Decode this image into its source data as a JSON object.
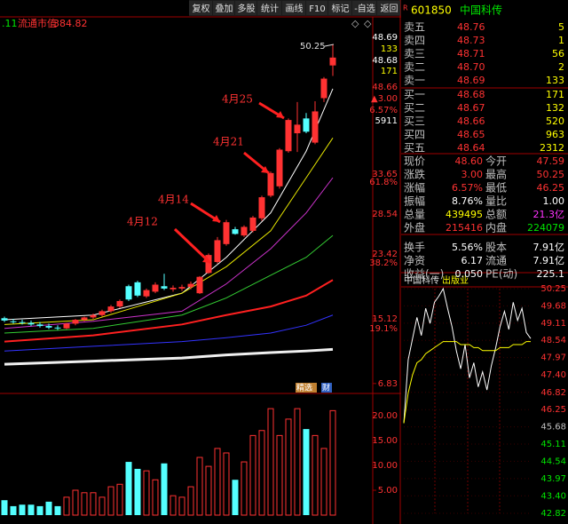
{
  "toolbar": [
    "复权",
    "叠加",
    "多股",
    "统计",
    "画线",
    "F10",
    "标记",
    "-自选",
    "返回"
  ],
  "indicator": {
    "period": ".11",
    "label": "流通市值",
    "value": "384.82"
  },
  "chart_data": [
    {
      "type": "candlestick",
      "candles": [
        [
          15.2,
          15.4,
          14.7,
          14.9
        ],
        [
          14.8,
          15.1,
          14.5,
          14.7
        ],
        [
          14.7,
          15.0,
          14.4,
          14.6
        ],
        [
          14.6,
          14.9,
          14.2,
          14.4
        ],
        [
          14.4,
          14.7,
          14.0,
          14.2
        ],
        [
          14.2,
          14.5,
          13.8,
          14.0
        ],
        [
          14.0,
          14.3,
          13.7,
          13.9
        ],
        [
          13.9,
          14.6,
          13.8,
          14.5
        ],
        [
          14.5,
          15.1,
          14.3,
          15.0
        ],
        [
          15.0,
          15.4,
          14.8,
          15.3
        ],
        [
          15.3,
          15.8,
          15.1,
          15.6
        ],
        [
          15.6,
          16.3,
          15.4,
          16.1
        ],
        [
          16.1,
          16.9,
          15.9,
          16.7
        ],
        [
          16.7,
          17.6,
          16.5,
          17.4
        ],
        [
          19.3,
          19.5,
          17.4,
          17.6
        ],
        [
          19.8,
          20.0,
          17.9,
          18.1
        ],
        [
          18.0,
          19.0,
          17.8,
          18.8
        ],
        [
          18.6,
          19.8,
          18.4,
          19.5
        ],
        [
          19.3,
          20.9,
          18.8,
          19.0
        ],
        [
          18.9,
          19.4,
          18.6,
          19.1
        ],
        [
          19.0,
          19.5,
          18.7,
          19.2
        ],
        [
          19.2,
          19.9,
          18.9,
          19.6
        ],
        [
          18.4,
          20.6,
          18.3,
          20.5
        ],
        [
          21.0,
          23.5,
          20.9,
          23.3
        ],
        [
          22.4,
          25.6,
          22.2,
          25.2
        ],
        [
          24.7,
          27.8,
          24.5,
          27.5
        ],
        [
          26.6,
          26.9,
          25.9,
          26.0
        ],
        [
          25.8,
          27.1,
          25.6,
          26.9
        ],
        [
          26.4,
          28.3,
          26.2,
          28.1
        ],
        [
          28.0,
          30.9,
          27.7,
          30.7
        ],
        [
          30.9,
          34.0,
          30.7,
          33.8
        ],
        [
          32.1,
          37.0,
          31.8,
          36.8
        ],
        [
          36.6,
          40.8,
          36.4,
          40.6
        ],
        [
          38.9,
          42.9,
          36.5,
          40.0
        ],
        [
          40.8,
          41.5,
          38.9,
          39.1
        ],
        [
          37.7,
          43.0,
          37.5,
          41.7
        ],
        [
          43.4,
          46.1,
          42.9,
          45.9
        ],
        [
          47.59,
          50.25,
          46.25,
          48.6
        ]
      ],
      "up_color": "#ff3232",
      "down_color": "#54ffff",
      "ylim": [
        5.9,
        53.7
      ],
      "yticks": [
        6.83,
        15.12,
        23.42,
        28.54,
        33.65
      ],
      "ma_x": [
        0,
        10,
        20,
        25,
        30,
        34,
        37
      ],
      "ma_lines": [
        {
          "color": "#ffffff",
          "values": [
            15.0,
            15.6,
            18.4,
            23.0,
            28.7,
            36.6,
            44.6
          ]
        },
        {
          "color": "#e6e600",
          "values": [
            14.4,
            15.0,
            18.4,
            21.8,
            26.4,
            33.2,
            38.3
          ]
        },
        {
          "color": "#cc33cc",
          "values": [
            13.9,
            14.8,
            16.1,
            19.6,
            24.1,
            28.7,
            33.2
          ]
        },
        {
          "color": "#33cc33",
          "values": [
            13.3,
            13.9,
            15.6,
            17.8,
            20.7,
            23.0,
            25.8
          ]
        },
        {
          "color": "#ff2020",
          "values": [
            12.2,
            13.0,
            14.4,
            15.6,
            16.7,
            18.1,
            20.1
          ]
        },
        {
          "color": "#3333ff",
          "values": [
            11.0,
            11.6,
            12.2,
            12.7,
            13.3,
            14.3,
            15.6
          ]
        },
        {
          "color": "#f0f0f0",
          "values": [
            9.3,
            9.7,
            10.1,
            10.5,
            10.8,
            11.0,
            11.2
          ]
        }
      ],
      "annotations": [
        "4月25",
        "4月21",
        "4月14",
        "4月12"
      ],
      "high_label": "50.25",
      "level_labels": [
        "61.8%",
        "38.2%",
        "19.1%"
      ],
      "side_info": [
        {
          "text": "48.69",
          "color": "#ffffff"
        },
        {
          "text": "133",
          "color": "#ffff00"
        },
        {
          "text": "48.68",
          "color": "#ffffff"
        },
        {
          "text": "171",
          "color": "#ffff00"
        },
        {
          "text": "48.66",
          "color": "#ff3232"
        },
        {
          "text": "▲3.00",
          "color": "#ff3232"
        },
        {
          "text": "6.57%",
          "color": "#ff3232"
        },
        {
          "text": "5911",
          "color": "#ffffff"
        }
      ],
      "tags": [
        "精选",
        "财"
      ]
    },
    {
      "type": "volume",
      "values": [
        3.0,
        1.8,
        2.1,
        2.1,
        1.8,
        2.7,
        1.8,
        3.6,
        5.0,
        4.5,
        4.5,
        3.6,
        5.7,
        6.2,
        10.7,
        9.3,
        8.9,
        7.1,
        10.4,
        3.9,
        3.6,
        5.7,
        11.6,
        9.8,
        13.4,
        12.5,
        7.1,
        10.7,
        16.0,
        17.0,
        21.4,
        16.0,
        19.3,
        21.4,
        17.3,
        16.0,
        13.4,
        21.0
      ],
      "ylim": [
        0,
        24.1
      ],
      "yticks": [
        {
          "value": 5,
          "label": "5.00"
        },
        {
          "value": 10,
          "label": "10.00"
        },
        {
          "value": 15,
          "label": "15.00"
        },
        {
          "value": 20,
          "label": "20.00"
        }
      ]
    },
    {
      "type": "line",
      "title": "中国科传",
      "subtitle": "出版业",
      "x": [
        0,
        1,
        2,
        3,
        4,
        5,
        6,
        7,
        8,
        9,
        10,
        11,
        12,
        13,
        14,
        15,
        16,
        17,
        18,
        19,
        20,
        21,
        22,
        23,
        24,
        25,
        26,
        27,
        28,
        29
      ],
      "series": [
        {
          "color": "#ffffff",
          "values": [
            45.8,
            47.9,
            48.6,
            49.3,
            48.7,
            49.6,
            49.1,
            49.8,
            50.0,
            50.25,
            49.6,
            49.0,
            48.2,
            47.6,
            48.4,
            47.3,
            47.8,
            47.0,
            47.5,
            46.9,
            47.7,
            48.3,
            49.0,
            49.5,
            48.9,
            49.8,
            49.2,
            49.6,
            48.8,
            48.6
          ]
        },
        {
          "color": "#ffff00",
          "values": [
            45.8,
            46.8,
            47.4,
            47.8,
            47.9,
            48.1,
            48.2,
            48.3,
            48.4,
            48.5,
            48.5,
            48.5,
            48.5,
            48.4,
            48.4,
            48.4,
            48.3,
            48.3,
            48.2,
            48.2,
            48.2,
            48.2,
            48.3,
            48.3,
            48.3,
            48.4,
            48.4,
            48.4,
            48.5,
            48.5
          ]
        }
      ],
      "xlim": [
        0,
        29
      ],
      "ylim": [
        42.82,
        50.25
      ],
      "yticks": [
        50.25,
        49.68,
        49.11,
        48.54,
        47.97,
        {
          "value": 47.4,
          "label": "47.40"
        },
        46.82,
        46.25,
        45.68,
        45.11,
        44.54,
        43.97,
        {
          "value": 43.4,
          "label": "43.40"
        },
        42.82
      ],
      "ytick_colors": [
        "#ff3232",
        "#ff3232",
        "#ff3232",
        "#ff3232",
        "#ff3232",
        "#ff3232",
        "#ff3232",
        "#ff3232",
        "#c0c0c0",
        "#00e600",
        "#00e600",
        "#00e600",
        "#00e600",
        "#00e600"
      ],
      "grid": true
    }
  ],
  "quote": {
    "flag": "R",
    "code": "601850",
    "name": "中国科传",
    "asks": [
      {
        "label": "卖五",
        "price": "48.76",
        "volume": "5"
      },
      {
        "label": "卖四",
        "price": "48.73",
        "volume": "1"
      },
      {
        "label": "卖三",
        "price": "48.71",
        "volume": "56"
      },
      {
        "label": "卖二",
        "price": "48.70",
        "volume": "2"
      },
      {
        "label": "卖一",
        "price": "48.69",
        "volume": "133"
      }
    ],
    "bids": [
      {
        "label": "买一",
        "price": "48.68",
        "volume": "171"
      },
      {
        "label": "买二",
        "price": "48.67",
        "volume": "132"
      },
      {
        "label": "买三",
        "price": "48.66",
        "volume": "520"
      },
      {
        "label": "买四",
        "price": "48.65",
        "volume": "963"
      },
      {
        "label": "买五",
        "price": "48.64",
        "volume": "2312"
      }
    ],
    "stats": [
      [
        {
          "label": "现价",
          "value": "48.60",
          "color": "#ff3232"
        },
        {
          "label": "今开",
          "value": "47.59",
          "color": "#ff3232"
        }
      ],
      [
        {
          "label": "涨跌",
          "value": "3.00",
          "color": "#ff3232"
        },
        {
          "label": "最高",
          "value": "50.25",
          "color": "#ff3232"
        }
      ],
      [
        {
          "label": "涨幅",
          "value": "6.57%",
          "color": "#ff3232"
        },
        {
          "label": "最低",
          "value": "46.25",
          "color": "#ff3232"
        }
      ],
      [
        {
          "label": "振幅",
          "value": "8.76%",
          "color": "#ffffff"
        },
        {
          "label": "量比",
          "value": "1.00",
          "color": "#ffffff"
        }
      ],
      [
        {
          "label": "总量",
          "value": "439495",
          "color": "#ffff00"
        },
        {
          "label": "总额",
          "value": "21.3亿",
          "color": "#ff33ff"
        }
      ],
      [
        {
          "label": "外盘",
          "value": "215416",
          "color": "#ff3232"
        },
        {
          "label": "内盘",
          "value": "224079",
          "color": "#00e600"
        }
      ],
      [
        {
          "label": "换手",
          "value": "5.56%",
          "color": "#ffffff"
        },
        {
          "label": "股本",
          "value": "7.91亿",
          "color": "#ffffff"
        }
      ],
      [
        {
          "label": "净资",
          "value": "6.17",
          "color": "#ffffff"
        },
        {
          "label": "流通",
          "value": "7.91亿",
          "color": "#ffffff"
        }
      ],
      [
        {
          "label": "收益(一)",
          "value": "0.050",
          "color": "#ffffff"
        },
        {
          "label": "PE(动)",
          "value": "225.1",
          "color": "#ffffff"
        }
      ]
    ]
  }
}
